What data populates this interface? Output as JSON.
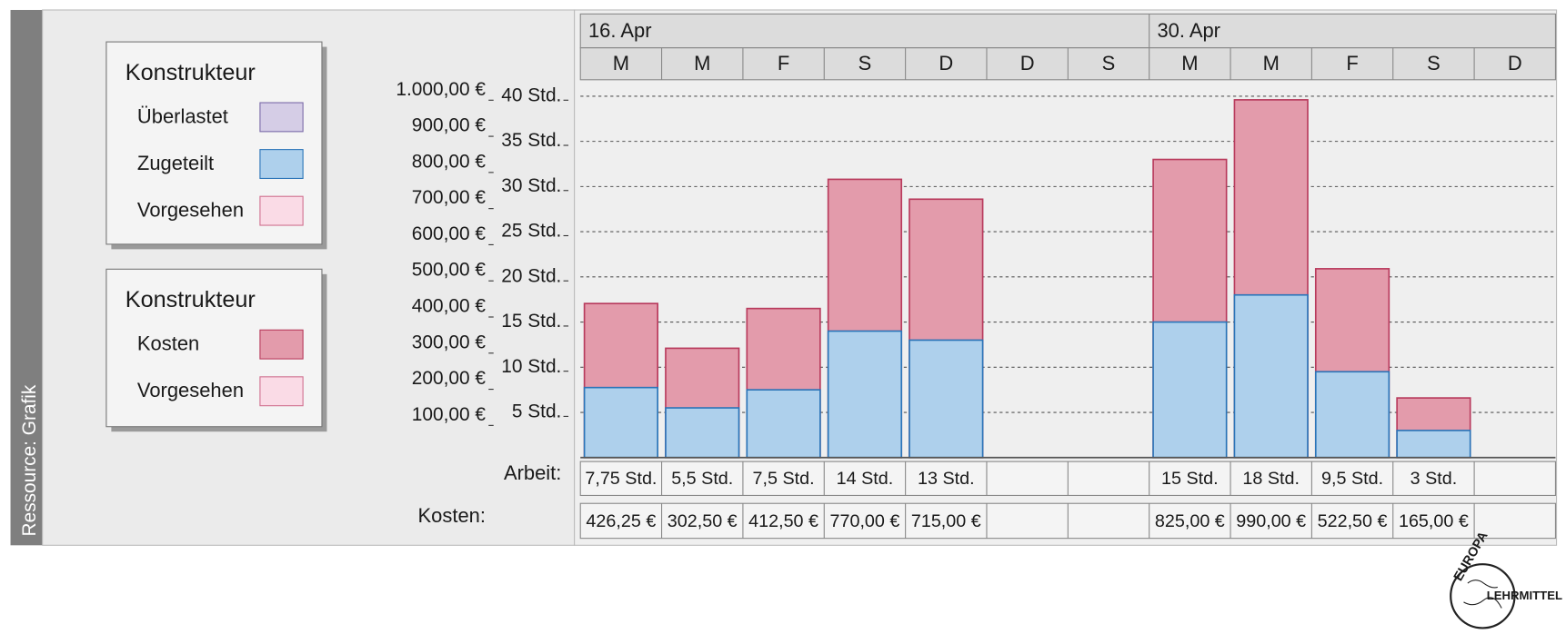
{
  "side_label": "Ressource: Grafik",
  "legends": [
    {
      "title": "Konstrukteur",
      "entries": [
        {
          "label": "Überlastet",
          "color": "#d5cde6",
          "border": "#7a6aa8"
        },
        {
          "label": "Zugeteilt",
          "color": "#aed0ec",
          "border": "#2a74b8"
        },
        {
          "label": "Vorgesehen",
          "color": "#fadbe6",
          "border": "#d0708f"
        }
      ]
    },
    {
      "title": "Konstrukteur",
      "entries": [
        {
          "label": "Kosten",
          "color": "#e39bab",
          "border": "#b83a5c"
        },
        {
          "label": "Vorgesehen",
          "color": "#fadbe6",
          "border": "#d0708f"
        }
      ]
    }
  ],
  "chart_data": {
    "type": "bar",
    "weeks": [
      "16. Apr",
      "30. Apr"
    ],
    "categories": [
      "M",
      "M",
      "F",
      "S",
      "D",
      "D",
      "S",
      "M",
      "M",
      "F",
      "S",
      "D"
    ],
    "ylim": [
      0,
      41.6
    ],
    "yticks": [
      {
        "value": 5,
        "label": "5 Std."
      },
      {
        "value": 10,
        "label": "10 Std."
      },
      {
        "value": 15,
        "label": "15 Std."
      },
      {
        "value": 20,
        "label": "20 Std."
      },
      {
        "value": 25,
        "label": "25 Std."
      },
      {
        "value": 30,
        "label": "30 Std."
      },
      {
        "value": 35,
        "label": "35 Std."
      },
      {
        "value": 40,
        "label": "40 Std."
      }
    ],
    "y2lim": [
      0,
      1040
    ],
    "y2ticks": [
      {
        "value": 100,
        "label": "100,00 €"
      },
      {
        "value": 200,
        "label": "200,00 €"
      },
      {
        "value": 300,
        "label": "300,00 €"
      },
      {
        "value": 400,
        "label": "400,00 €"
      },
      {
        "value": 500,
        "label": "500,00 €"
      },
      {
        "value": 600,
        "label": "600,00 €"
      },
      {
        "value": 700,
        "label": "700,00 €"
      },
      {
        "value": 800,
        "label": "800,00 €"
      },
      {
        "value": 900,
        "label": "900,00 €"
      },
      {
        "value": 1000,
        "label": "1.000,00 €"
      }
    ],
    "grid": true,
    "series": [
      {
        "name": "Arbeit:",
        "color": "#aed0ec",
        "border": "#2a74b8",
        "axis": "y",
        "values": [
          7.75,
          5.5,
          7.5,
          14,
          13,
          null,
          null,
          15,
          18,
          9.5,
          3,
          null
        ],
        "value_labels": [
          "7,75 Std.",
          "5,5 Std.",
          "7,5 Std.",
          "14 Std.",
          "13 Std.",
          null,
          null,
          "15 Std.",
          "18 Std.",
          "9,5 Std.",
          "3 Std.",
          null
        ]
      },
      {
        "name": "Kosten:",
        "color": "#e39bab",
        "border": "#b83a5c",
        "axis": "y2",
        "values": [
          426.25,
          302.5,
          412.5,
          770,
          715,
          null,
          null,
          825,
          990,
          522.5,
          165,
          null
        ],
        "value_labels": [
          "426,25 €",
          "302,50 €",
          "412,50 €",
          "770,00 €",
          "715,00 €",
          null,
          null,
          "825,00 €",
          "990,00 €",
          "522,50 €",
          "165,00 €",
          null
        ]
      }
    ]
  },
  "logo": {
    "top": "EUROPA",
    "bottom": "LEHRMITTEL"
  }
}
